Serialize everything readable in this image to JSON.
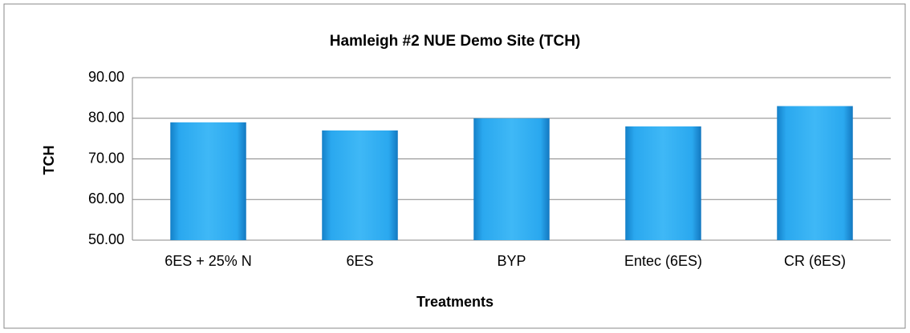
{
  "chart_data": {
    "type": "bar",
    "title": "Hamleigh #2 NUE Demo Site (TCH)",
    "x_label": "Treatments",
    "y_label": "TCH",
    "categories": [
      "6ES + 25% N",
      "6ES",
      "BYP",
      "Entec (6ES)",
      "CR (6ES)"
    ],
    "values": [
      79,
      77,
      80,
      78,
      83
    ],
    "color": "#2aa8ef",
    "ylim": [
      50,
      90
    ],
    "yticks": [
      {
        "value": 50,
        "label": "50.00"
      },
      {
        "value": 60,
        "label": "60.00"
      },
      {
        "value": 70,
        "label": "70.00"
      },
      {
        "value": 80,
        "label": "80.00"
      },
      {
        "value": 90,
        "label": "90.00"
      }
    ],
    "grid": true
  }
}
